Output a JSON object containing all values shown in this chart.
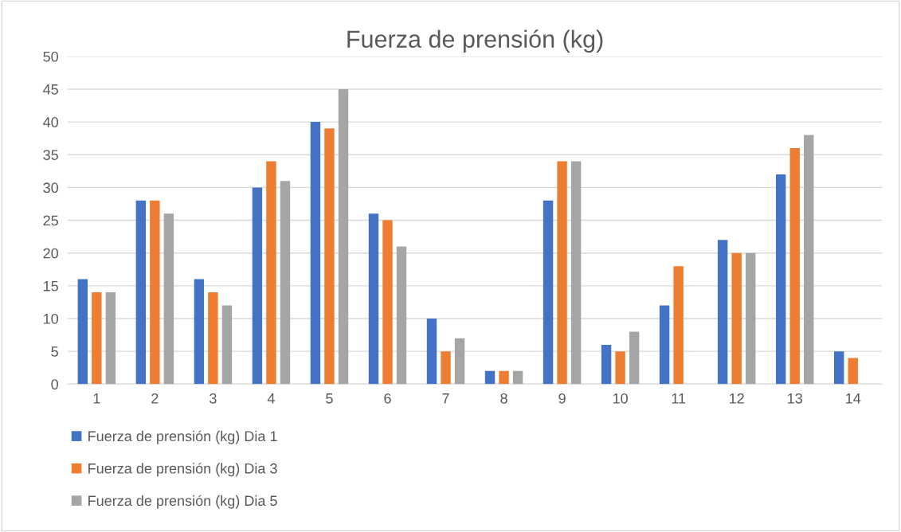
{
  "chart_data": {
    "type": "bar",
    "title": "Fuerza de prensión (kg)",
    "categories": [
      "1",
      "2",
      "3",
      "4",
      "5",
      "6",
      "7",
      "8",
      "9",
      "10",
      "11",
      "12",
      "13",
      "14"
    ],
    "series": [
      {
        "name": "Fuerza de prensión (kg) Dia 1",
        "color": "#4472c4",
        "values": [
          16,
          28,
          16,
          30,
          40,
          26,
          10,
          2,
          28,
          6,
          12,
          22,
          32,
          5
        ]
      },
      {
        "name": "Fuerza de prensión (kg) Dia 3",
        "color": "#ed7d31",
        "values": [
          14,
          28,
          14,
          34,
          39,
          25,
          5,
          2,
          34,
          5,
          18,
          20,
          36,
          4
        ]
      },
      {
        "name": "Fuerza de prensión (kg) Dia 5",
        "color": "#a5a5a5",
        "values": [
          14,
          26,
          12,
          31,
          45,
          21,
          7,
          2,
          34,
          8,
          null,
          20,
          38,
          null
        ]
      }
    ],
    "ylim": [
      0,
      50
    ],
    "yticks": [
      0,
      5,
      10,
      15,
      20,
      25,
      30,
      35,
      40,
      45,
      50
    ],
    "grid": "y",
    "legend": "bottom"
  }
}
